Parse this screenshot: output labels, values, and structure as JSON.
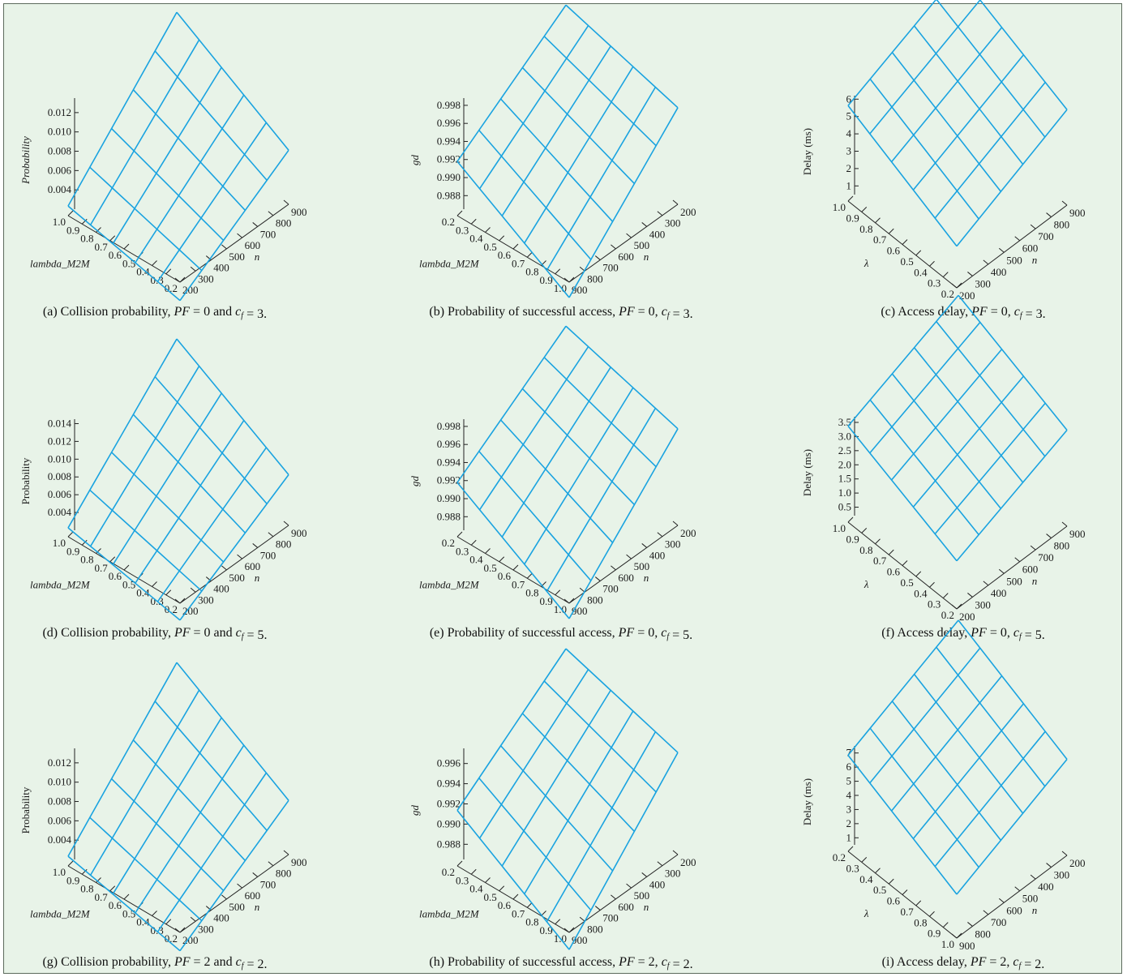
{
  "colors": {
    "background": "#e8f3e8",
    "surface_line": "#1aa3e0",
    "axis": "#222222"
  },
  "chart_data": [
    {
      "id": "a",
      "type": "surface",
      "caption_parts": [
        [
          "(a) Collision probability, ",
          false
        ],
        [
          "PF",
          true
        ],
        [
          " = 0 and ",
          false
        ],
        [
          "c",
          true
        ],
        [
          "f",
          "sub"
        ],
        [
          " = 3.",
          false
        ]
      ],
      "zlabel": "Probability",
      "zlabel_italic": true,
      "zticks": [
        "0.004",
        "0.006",
        "0.008",
        "0.010",
        "0.012"
      ],
      "zrange": [
        0.002,
        0.0135
      ],
      "xlabel": "lambda_M2M",
      "xticks": [
        "1.0",
        "0.9",
        "0.8",
        "0.7",
        "0.6",
        "0.5",
        "0.4",
        "0.3",
        "0.2"
      ],
      "ylabel": "n",
      "yticks": [
        "200",
        "300",
        "400",
        "500",
        "600",
        "700",
        "800",
        "900"
      ],
      "corners": {
        "front": 0.0001,
        "left": 0.003,
        "right": 0.0076,
        "back": 0.015
      }
    },
    {
      "id": "b",
      "type": "surface",
      "caption_parts": [
        [
          "(b) Probability of successful access, ",
          false
        ],
        [
          "PF",
          true
        ],
        [
          " = 0, ",
          false
        ],
        [
          "c",
          true
        ],
        [
          "f",
          "sub"
        ],
        [
          " = 3.",
          false
        ]
      ],
      "zlabel": "gd",
      "zlabel_italic": true,
      "zticks": [
        "0.988",
        "0.990",
        "0.992",
        "0.994",
        "0.996",
        "0.998"
      ],
      "zrange": [
        0.9865,
        0.9988
      ],
      "xlabel": "lambda_M2M",
      "xticks": [
        "0.2",
        "0.3",
        "0.4",
        "0.5",
        "0.6",
        "0.7",
        "0.8",
        "0.9",
        "1.0"
      ],
      "ylabel": "n",
      "yticks": [
        "900",
        "800",
        "700",
        "600",
        "500",
        "400",
        "300",
        "200"
      ],
      "corners": {
        "front": 0.9848,
        "left": 0.9925,
        "right": 0.9972,
        "back": 1.0012
      }
    },
    {
      "id": "c",
      "type": "surface",
      "caption_parts": [
        [
          "(c) Access delay, ",
          false
        ],
        [
          "PF",
          true
        ],
        [
          " = 0, ",
          false
        ],
        [
          "c",
          true
        ],
        [
          "f",
          "sub"
        ],
        [
          " = 3.",
          false
        ]
      ],
      "zlabel": "Delay (ms)",
      "zlabel_italic": false,
      "zticks": [
        "1",
        "2",
        "3",
        "4",
        "5",
        "6"
      ],
      "zrange": [
        0.5,
        6.2
      ],
      "xlabel": "λ",
      "xticks": [
        "1.0",
        "0.9",
        "0.8",
        "0.7",
        "0.6",
        "0.5",
        "0.4",
        "0.3",
        "0.2"
      ],
      "ylabel": "n",
      "yticks": [
        "200",
        "300",
        "400",
        "500",
        "600",
        "700",
        "800",
        "900"
      ],
      "corners": {
        "front": 2.9,
        "left": 6.0,
        "right": 6.0,
        "back": 8.9
      }
    },
    {
      "id": "d",
      "type": "surface",
      "caption_parts": [
        [
          "(d) Collision probability, ",
          false
        ],
        [
          "PF",
          true
        ],
        [
          " = 0 and ",
          false
        ],
        [
          "c",
          true
        ],
        [
          "f",
          "sub"
        ],
        [
          " = 5.",
          false
        ]
      ],
      "zlabel": "Probability",
      "zlabel_italic": false,
      "zticks": [
        "0.004",
        "0.006",
        "0.008",
        "0.010",
        "0.012",
        "0.014"
      ],
      "zrange": [
        0.002,
        0.0145
      ],
      "xlabel": "lambda_M2M",
      "xticks": [
        "1.0",
        "0.9",
        "0.8",
        "0.7",
        "0.6",
        "0.5",
        "0.4",
        "0.3",
        "0.2"
      ],
      "ylabel": "n",
      "yticks": [
        "200",
        "300",
        "400",
        "500",
        "600",
        "700",
        "800",
        "900"
      ],
      "corners": {
        "front": 0.0001,
        "left": 0.003,
        "right": 0.0077,
        "back": 0.0155
      }
    },
    {
      "id": "e",
      "type": "surface",
      "caption_parts": [
        [
          "(e) Probability of successful access, ",
          false
        ],
        [
          "PF",
          true
        ],
        [
          " = 0, ",
          false
        ],
        [
          "c",
          true
        ],
        [
          "f",
          "sub"
        ],
        [
          " = 5.",
          false
        ]
      ],
      "zlabel": "gd",
      "zlabel_italic": true,
      "zticks": [
        "0.988",
        "0.990",
        "0.992",
        "0.994",
        "0.996",
        "0.998"
      ],
      "zrange": [
        0.9865,
        0.9988
      ],
      "xlabel": "lambda_M2M",
      "xticks": [
        "0.2",
        "0.3",
        "0.4",
        "0.5",
        "0.6",
        "0.7",
        "0.8",
        "0.9",
        "1.0"
      ],
      "ylabel": "n",
      "yticks": [
        "900",
        "800",
        "700",
        "600",
        "500",
        "400",
        "300",
        "200"
      ],
      "corners": {
        "front": 0.9848,
        "left": 0.9925,
        "right": 0.9972,
        "back": 1.0012
      }
    },
    {
      "id": "f",
      "type": "surface",
      "caption_parts": [
        [
          "(f) Access delay, ",
          false
        ],
        [
          "PF",
          true
        ],
        [
          " = 0, ",
          false
        ],
        [
          "c",
          true
        ],
        [
          "f",
          "sub"
        ],
        [
          " = 5.",
          false
        ]
      ],
      "zlabel": "Delay (ms)",
      "zlabel_italic": false,
      "zticks": [
        "0.5",
        "1.0",
        "1.5",
        "2.0",
        "2.5",
        "3.0",
        "3.5"
      ],
      "zrange": [
        0.2,
        3.7
      ],
      "xlabel": "λ",
      "xticks": [
        "1.0",
        "0.9",
        "0.8",
        "0.7",
        "0.6",
        "0.5",
        "0.4",
        "0.3",
        "0.2"
      ],
      "ylabel": "n",
      "yticks": [
        "200",
        "300",
        "400",
        "500",
        "600",
        "700",
        "800",
        "900"
      ],
      "corners": {
        "front": 1.9,
        "left": 3.6,
        "right": 3.6,
        "back": 5.3
      }
    },
    {
      "id": "g",
      "type": "surface",
      "caption_parts": [
        [
          "(g) Collision probability, ",
          false
        ],
        [
          "PF",
          true
        ],
        [
          " = 2 and ",
          false
        ],
        [
          "c",
          true
        ],
        [
          "f",
          "sub"
        ],
        [
          " = 2.",
          false
        ]
      ],
      "zlabel": "Probability",
      "zlabel_italic": false,
      "zticks": [
        "0.004",
        "0.006",
        "0.008",
        "0.010",
        "0.012"
      ],
      "zrange": [
        0.002,
        0.0135
      ],
      "xlabel": "lambda_M2M",
      "xticks": [
        "1.0",
        "0.9",
        "0.8",
        "0.7",
        "0.6",
        "0.5",
        "0.4",
        "0.3",
        "0.2"
      ],
      "ylabel": "n",
      "yticks": [
        "200",
        "300",
        "400",
        "500",
        "600",
        "700",
        "800",
        "900"
      ],
      "corners": {
        "front": 0.0001,
        "left": 0.003,
        "right": 0.0076,
        "back": 0.015
      }
    },
    {
      "id": "h",
      "type": "surface",
      "caption_parts": [
        [
          "(h) Probability of successful access, ",
          false
        ],
        [
          "PF",
          true
        ],
        [
          " = 2, ",
          false
        ],
        [
          "c",
          true
        ],
        [
          "f",
          "sub"
        ],
        [
          " = 2.",
          false
        ]
      ],
      "zlabel": "gd",
      "zlabel_italic": true,
      "zticks": [
        "0.988",
        "0.990",
        "0.992",
        "0.994",
        "0.996"
      ],
      "zrange": [
        0.9865,
        0.9975
      ],
      "xlabel": "lambda_M2M",
      "xticks": [
        "0.2",
        "0.3",
        "0.4",
        "0.5",
        "0.6",
        "0.7",
        "0.8",
        "0.9",
        "1.0"
      ],
      "ylabel": "n",
      "yticks": [
        "900",
        "800",
        "700",
        "600",
        "500",
        "400",
        "300",
        "200"
      ],
      "corners": {
        "front": 0.9848,
        "left": 0.992,
        "right": 0.9966,
        "back": 1.0003
      }
    },
    {
      "id": "i",
      "type": "surface",
      "caption_parts": [
        [
          "(i) Access delay, ",
          false
        ],
        [
          "PF",
          true
        ],
        [
          " = 2, ",
          false
        ],
        [
          "c",
          true
        ],
        [
          "f",
          "sub"
        ],
        [
          " = 2.",
          false
        ]
      ],
      "zlabel": "Delay (ms)",
      "zlabel_italic": false,
      "zticks": [
        "1",
        "2",
        "3",
        "4",
        "5",
        "6",
        "7"
      ],
      "zrange": [
        0.5,
        7.5
      ],
      "xlabel": "λ",
      "xticks": [
        "0.2",
        "0.3",
        "0.4",
        "0.5",
        "0.6",
        "0.7",
        "0.8",
        "0.9",
        "1.0"
      ],
      "ylabel": "n",
      "yticks": [
        "900",
        "800",
        "700",
        "600",
        "500",
        "400",
        "300",
        "200"
      ],
      "corners": {
        "front": 3.6,
        "left": 7.3,
        "right": 7.3,
        "back": 11.0
      }
    }
  ]
}
